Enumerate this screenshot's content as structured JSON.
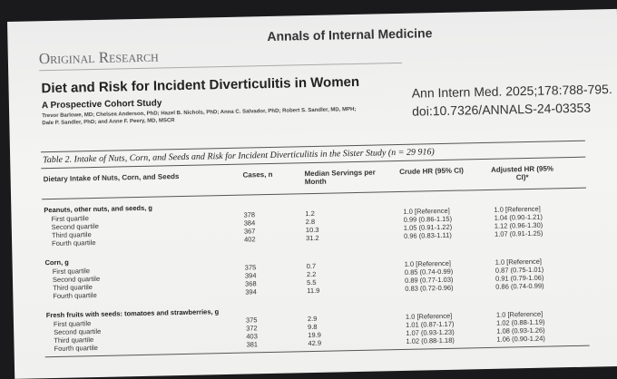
{
  "header": {
    "section": "Original Research",
    "journal": "Annals of Internal Medicine",
    "title": "Diet and Risk for Incident Diverticulitis in Women",
    "subtitle": "A Prospective Cohort Study",
    "authors": [
      "Trevor Barlowe, MD; Chelsea Anderson, PhD; Hazel B. Nichols, PhD; Anna C. Salvador, PhD; Robert S. Sandler, MD, MPH;",
      "Dale P. Sandler, PhD; and Anne F. Peery, MD, MSCR"
    ],
    "citation": "Ann Intern Med. 2025;178:788-795.",
    "doi": "doi:10.7326/ANNALS-24-03353"
  },
  "table": {
    "caption": "Table 2. Intake of Nuts, Corn, and Seeds and Risk for Incident Diverticulitis in the Sister Study (n = 29 916)",
    "columns": [
      "Dietary Intake of Nuts, Corn, and Seeds",
      "Cases, n",
      "Median Servings per Month",
      "Crude HR (95% CI)",
      "Adjusted HR (95% CI)*"
    ],
    "groups": [
      {
        "label": "Peanuts, other nuts, and seeds, g",
        "rows": [
          [
            "First quartile",
            "378",
            "1.2",
            "1.0 [Reference]",
            "1.0 [Reference]"
          ],
          [
            "Second quartile",
            "384",
            "2.8",
            "0.99 (0.86-1.15)",
            "1.04 (0.90-1.21)"
          ],
          [
            "Third quartile",
            "367",
            "10.3",
            "1.05 (0.91-1.22)",
            "1.12 (0.96-1.30)"
          ],
          [
            "Fourth quartile",
            "402",
            "31.2",
            "0.96 (0.83-1.11)",
            "1.07 (0.91-1.25)"
          ]
        ]
      },
      {
        "label": "Corn, g",
        "rows": [
          [
            "First quartile",
            "375",
            "0.7",
            "1.0 [Reference]",
            "1.0 [Reference]"
          ],
          [
            "Second quartile",
            "394",
            "2.2",
            "0.85 (0.74-0.99)",
            "0.87 (0.75-1.01)"
          ],
          [
            "Third quartile",
            "368",
            "5.5",
            "0.89 (0.77-1.03)",
            "0.91 (0.79-1.06)"
          ],
          [
            "Fourth quartile",
            "394",
            "11.9",
            "0.83 (0.72-0.96)",
            "0.86 (0.74-0.99)"
          ]
        ]
      },
      {
        "label": "Fresh fruits with seeds: tomatoes and strawberries, g",
        "rows": [
          [
            "First quartile",
            "375",
            "2.9",
            "1.0 [Reference]",
            "1.0 [Reference]"
          ],
          [
            "Second quartile",
            "372",
            "9.8",
            "1.01 (0.87-1.17)",
            "1.02 (0.88-1.19)"
          ],
          [
            "Third quartile",
            "403",
            "19.9",
            "1.07 (0.93-1.23)",
            "1.08 (0.93-1.26)"
          ],
          [
            "Fourth quartile",
            "381",
            "42.9",
            "1.02 (0.88-1.18)",
            "1.06 (0.90-1.24)"
          ]
        ]
      }
    ]
  }
}
